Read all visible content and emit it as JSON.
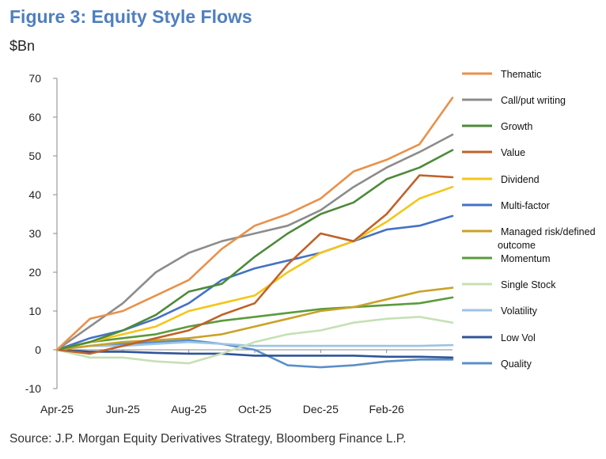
{
  "figure": {
    "title": "Figure 3: Equity Style Flows",
    "unit": "$Bn",
    "source": "Source: J.P. Morgan Equity Derivatives Strategy, Bloomberg Finance L.P."
  },
  "chart_data": {
    "type": "line",
    "title": "Figure 3: Equity Style Flows",
    "ylabel": "$Bn",
    "xlabel": "",
    "ylim": [
      -10,
      70
    ],
    "yticks": [
      -10,
      0,
      10,
      20,
      30,
      40,
      50,
      60,
      70
    ],
    "x_tick_labels": [
      "Apr-25",
      "Jun-25",
      "Aug-25",
      "Oct-25",
      "Dec-25",
      "Feb-26"
    ],
    "x": [
      "Apr-25",
      "May-25",
      "Jun-25",
      "Jul-25",
      "Aug-25",
      "Sep-25",
      "Oct-25",
      "Nov-25",
      "Dec-25",
      "Jan-26",
      "Feb-26",
      "Mar-26",
      "Apr-26"
    ],
    "legend_position": "right",
    "grid": false,
    "series": [
      {
        "name": "Thematic",
        "color": "#e8914a",
        "values": [
          0,
          8,
          10,
          14,
          18,
          26,
          32,
          35,
          39,
          46,
          49,
          53,
          65
        ]
      },
      {
        "name": "Call/put writing",
        "color": "#8c8c8c",
        "values": [
          0,
          6,
          12,
          20,
          25,
          28,
          30,
          32,
          36,
          42,
          47,
          51,
          55.5
        ]
      },
      {
        "name": "Growth",
        "color": "#4d8a3a",
        "values": [
          0,
          2,
          5,
          9,
          15,
          17,
          24,
          30,
          35,
          38,
          44,
          47,
          51.5
        ]
      },
      {
        "name": "Value",
        "color": "#c0622a",
        "values": [
          0,
          -1,
          1,
          3,
          5,
          9,
          12,
          22,
          30,
          28,
          35,
          45,
          44.5
        ]
      },
      {
        "name": "Dividend",
        "color": "#f5c518",
        "values": [
          0,
          2,
          4,
          6,
          10,
          12,
          14,
          20,
          25,
          28,
          33,
          39,
          42
        ]
      },
      {
        "name": "Multi-factor",
        "color": "#4472c4",
        "values": [
          0,
          3,
          5,
          8,
          12,
          18,
          21,
          23,
          25,
          28,
          31,
          32,
          34.5
        ]
      },
      {
        "name": "Managed risk/defined outcome",
        "color": "#c9a227",
        "values": [
          0,
          1,
          2,
          2.5,
          3,
          4,
          6,
          8,
          10,
          11,
          13,
          15,
          16
        ]
      },
      {
        "name": "Momentum",
        "color": "#5a9b3c",
        "values": [
          0,
          2,
          3,
          4,
          6,
          7.5,
          8.5,
          9.5,
          10.5,
          11,
          11.5,
          12,
          13.5
        ]
      },
      {
        "name": "Single Stock",
        "color": "#c6e0b4",
        "values": [
          0,
          -2,
          -2,
          -3,
          -3.5,
          -1,
          2,
          4,
          5,
          7,
          8,
          8.5,
          7
        ]
      },
      {
        "name": "Volatility",
        "color": "#9dc3e6",
        "values": [
          0,
          1,
          1,
          1.5,
          2,
          1.5,
          1,
          1,
          1,
          1,
          1,
          1,
          1.2
        ]
      },
      {
        "name": "Low Vol",
        "color": "#2f5597",
        "values": [
          0,
          -0.5,
          -0.5,
          -0.8,
          -1,
          -1,
          -1.5,
          -1.5,
          -1.5,
          -1.5,
          -1.8,
          -1.8,
          -2
        ]
      },
      {
        "name": "Quality",
        "color": "#5b8fc9",
        "values": [
          0,
          1,
          1.5,
          2,
          2.5,
          1.5,
          0,
          -4,
          -4.5,
          -4,
          -3,
          -2.5,
          -2.5
        ]
      }
    ]
  }
}
